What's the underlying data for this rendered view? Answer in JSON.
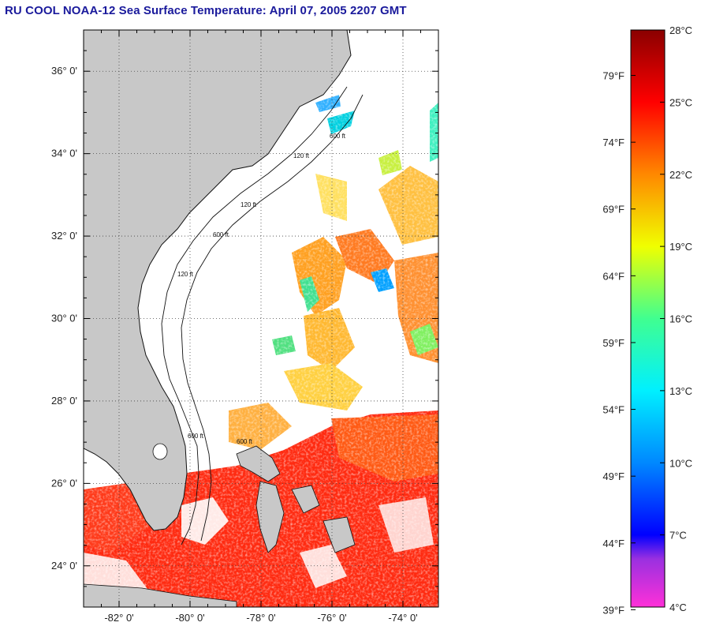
{
  "title": "RU COOL  NOAA-12  Sea Surface Temperature:  April 07, 2005 2207 GMT",
  "map": {
    "lat_range": [
      23.0,
      37.0
    ],
    "lon_range": [
      -83.0,
      -73.0
    ],
    "lat_ticks": [
      {
        "value": 24,
        "label": "24° 0'"
      },
      {
        "value": 26,
        "label": "26° 0'"
      },
      {
        "value": 28,
        "label": "28° 0'"
      },
      {
        "value": 30,
        "label": "30° 0'"
      },
      {
        "value": 32,
        "label": "32° 0'"
      },
      {
        "value": 34,
        "label": "34° 0'"
      },
      {
        "value": 36,
        "label": "36° 0'"
      }
    ],
    "lon_ticks": [
      {
        "value": -82,
        "label": "-82° 0'"
      },
      {
        "value": -80,
        "label": "-80° 0'"
      },
      {
        "value": -78,
        "label": "-78° 0'"
      },
      {
        "value": -76,
        "label": "-76° 0'"
      },
      {
        "value": -74,
        "label": "-74° 0'"
      }
    ],
    "isobath_labels": [
      "120 ft",
      "600 ft",
      "120 ft",
      "600 ft",
      "600 ft",
      "120 ft",
      "600 ft"
    ],
    "colors": {
      "land": "#c8c8c8",
      "no_data": "#ffffff",
      "grid": "#555555"
    }
  },
  "colorbar": {
    "min_c": 4,
    "max_c": 28,
    "celsius_ticks": [
      {
        "value": 28,
        "label": "28°C"
      },
      {
        "value": 25,
        "label": "25°C"
      },
      {
        "value": 22,
        "label": "22°C"
      },
      {
        "value": 19,
        "label": "19°C"
      },
      {
        "value": 16,
        "label": "16°C"
      },
      {
        "value": 13,
        "label": "13°C"
      },
      {
        "value": 10,
        "label": "10°C"
      },
      {
        "value": 7,
        "label": "7°C"
      },
      {
        "value": 4,
        "label": "4°C"
      }
    ],
    "fahrenheit_ticks": [
      {
        "value": 79,
        "label": "79°F"
      },
      {
        "value": 74,
        "label": "74°F"
      },
      {
        "value": 69,
        "label": "69°F"
      },
      {
        "value": 64,
        "label": "64°F"
      },
      {
        "value": 59,
        "label": "59°F"
      },
      {
        "value": 54,
        "label": "54°F"
      },
      {
        "value": 49,
        "label": "49°F"
      },
      {
        "value": 44,
        "label": "44°F"
      },
      {
        "value": 39,
        "label": "39°F"
      }
    ],
    "color_stops": [
      {
        "c": 4,
        "color": "#ff30d8"
      },
      {
        "c": 6,
        "color": "#9a30e0"
      },
      {
        "c": 7,
        "color": "#0000ff"
      },
      {
        "c": 10,
        "color": "#0088ff"
      },
      {
        "c": 13,
        "color": "#00f0ff"
      },
      {
        "c": 16,
        "color": "#40ff90"
      },
      {
        "c": 19,
        "color": "#f0ff00"
      },
      {
        "c": 22,
        "color": "#ff8800"
      },
      {
        "c": 25,
        "color": "#ff0000"
      },
      {
        "c": 28,
        "color": "#8a0000"
      }
    ]
  }
}
